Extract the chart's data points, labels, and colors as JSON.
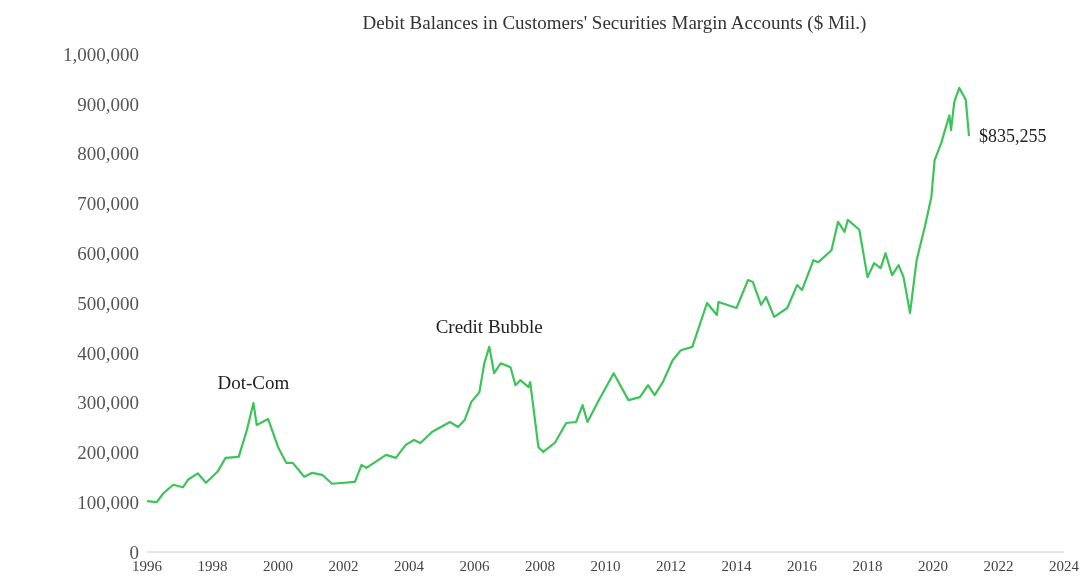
{
  "chart_data": {
    "type": "line",
    "title": "Debit Balances in Customers' Securities Margin Accounts ($ Mil.)",
    "x": [
      1996.0,
      1996.3,
      1996.5,
      1996.8,
      1997.1,
      1997.25,
      1997.55,
      1997.8,
      1998.15,
      1998.4,
      1998.8,
      1999.05,
      1999.25,
      1999.35,
      1999.7,
      2000.0,
      2000.25,
      2000.45,
      2000.8,
      2001.05,
      2001.35,
      2001.65,
      2002.35,
      2002.55,
      2002.7,
      2003.3,
      2003.6,
      2003.9,
      2004.15,
      2004.35,
      2004.7,
      2005.25,
      2005.5,
      2005.7,
      2005.9,
      2006.15,
      2006.3,
      2006.45,
      2006.6,
      2006.8,
      2007.1,
      2007.25,
      2007.4,
      2007.65,
      2007.7,
      2007.95,
      2008.1,
      2008.45,
      2008.8,
      2009.1,
      2009.3,
      2009.45,
      2009.8,
      2010.25,
      2010.7,
      2011.05,
      2011.3,
      2011.5,
      2011.75,
      2012.05,
      2012.3,
      2012.65,
      2013.1,
      2013.4,
      2013.45,
      2014.0,
      2014.35,
      2014.5,
      2014.75,
      2014.9,
      2015.15,
      2015.55,
      2015.85,
      2016.0,
      2016.35,
      2016.5,
      2016.9,
      2017.1,
      2017.3,
      2017.4,
      2017.75,
      2018.0,
      2018.2,
      2018.4,
      2018.55,
      2018.75,
      2018.95,
      2019.1,
      2019.3,
      2019.5,
      2019.75,
      2019.95,
      2020.05,
      2020.25,
      2020.5,
      2020.55,
      2020.65,
      2020.8,
      2021.0,
      2021.1
    ],
    "series": [
      {
        "color": "#3cc45a",
        "values": [
          102000,
          100000,
          118000,
          135000,
          130000,
          145000,
          158000,
          139000,
          161000,
          189000,
          191000,
          245000,
          299000,
          255000,
          267000,
          211000,
          179000,
          179000,
          151000,
          159000,
          155000,
          137000,
          141000,
          175000,
          169000,
          195000,
          189000,
          215000,
          225000,
          219000,
          241000,
          261000,
          251000,
          265000,
          301000,
          321000,
          379000,
          412000,
          359000,
          379000,
          371000,
          335000,
          345000,
          331000,
          341000,
          211000,
          201000,
          219000,
          259000,
          261000,
          295000,
          261000,
          305000,
          359000,
          305000,
          311000,
          335000,
          315000,
          341000,
          385000,
          405000,
          412000,
          500000,
          476000,
          502000,
          490000,
          546000,
          542000,
          496000,
          512000,
          472000,
          490000,
          536000,
          526000,
          586000,
          582000,
          606000,
          663000,
          643000,
          667000,
          647000,
          552000,
          580000,
          570000,
          600000,
          556000,
          576000,
          552000,
          480000,
          586000,
          653000,
          713000,
          787000,
          821000,
          877000,
          847000,
          904000,
          932000,
          908000,
          835255
        ]
      }
    ],
    "xlim": [
      1996,
      2024
    ],
    "xticks": [
      1996,
      1998,
      2000,
      2002,
      2004,
      2006,
      2008,
      2010,
      2012,
      2014,
      2016,
      2018,
      2020,
      2022,
      2024
    ],
    "ylim": [
      0,
      1000000
    ],
    "yticks": [
      0,
      {
        "value": 100000,
        "label": "100,000"
      },
      {
        "value": 200000,
        "label": "200,000"
      },
      {
        "value": 300000,
        "label": "300,000"
      },
      {
        "value": 400000,
        "label": "400,000"
      },
      {
        "value": 500000,
        "label": "500,000"
      },
      {
        "value": 600000,
        "label": "600,000"
      },
      {
        "value": 700000,
        "label": "700,000"
      },
      {
        "value": 800000,
        "label": "800,000"
      },
      {
        "value": 900000,
        "label": "900,000"
      },
      {
        "value": 1000000,
        "label": "1,000,000"
      }
    ],
    "grid": false,
    "legend": false,
    "marker": "none",
    "line_style": "solid",
    "annotations": [
      {
        "text": "Dot-Com",
        "x": 1999.25,
        "y": 299000
      },
      {
        "text": "Credit Bubble",
        "x": 2006.45,
        "y": 412000
      },
      {
        "text": "$835,255",
        "x": 2021.1,
        "y": 835255
      }
    ]
  }
}
